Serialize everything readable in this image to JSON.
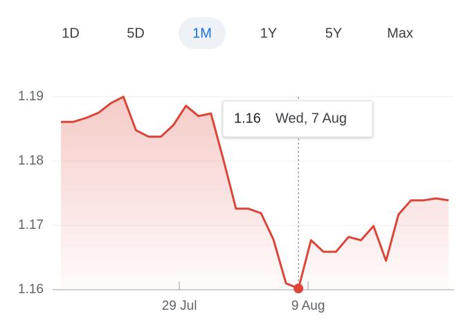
{
  "tabs": [
    "1D",
    "5D",
    "1M",
    "1Y",
    "5Y",
    "Max"
  ],
  "selected_tab": "1M",
  "chart_data": {
    "type": "area",
    "x": [
      0,
      1,
      2,
      3,
      4,
      5,
      6,
      7,
      8,
      9,
      10,
      11,
      12,
      13,
      14,
      15,
      16,
      17,
      18,
      19,
      20,
      21,
      22,
      23,
      24,
      25,
      26,
      27,
      28,
      29,
      30,
      31
    ],
    "series": [
      {
        "color": "#db4437",
        "values": [
          1.1861,
          1.1861,
          1.1867,
          1.1875,
          1.189,
          1.19,
          1.1848,
          1.1838,
          1.1838,
          1.1856,
          1.1886,
          1.187,
          1.1874,
          1.1802,
          1.1726,
          1.1726,
          1.1719,
          1.1678,
          1.161,
          1.1602,
          1.1677,
          1.1659,
          1.1659,
          1.1682,
          1.1677,
          1.1699,
          1.1645,
          1.1717,
          1.1739,
          1.1739,
          1.1742,
          1.1739
        ]
      }
    ],
    "xlim": [
      0,
      31
    ],
    "ylim": [
      1.16,
      1.193
    ],
    "yticks": [
      1.16,
      1.17,
      1.18,
      1.19
    ],
    "xticks": [
      {
        "value": 9.47,
        "label": "29 Jul"
      },
      {
        "value": 19.77,
        "label": "9 Aug"
      }
    ],
    "grid": true,
    "tooltip": {
      "x": 19,
      "value": "1.16",
      "date": "Wed, 7 Aug"
    }
  }
}
